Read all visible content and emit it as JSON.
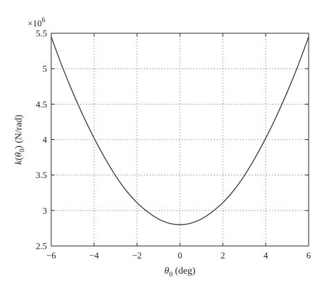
{
  "chart_data": {
    "type": "line",
    "title": "",
    "xlabel_symbol": "θ",
    "xlabel_sub": "0",
    "xlabel_rest": " (deg)",
    "ylabel_prefix": "k",
    "ylabel_paren_open": "(",
    "ylabel_symbol": "θ",
    "ylabel_sub": "0",
    "ylabel_rest": ") (N/rad)",
    "y_multiplier_base": "×10",
    "y_multiplier_exp": "6",
    "xlim": [
      -6,
      6
    ],
    "ylim": [
      2.5,
      5.5
    ],
    "x_ticks": [
      -6,
      -4,
      -2,
      0,
      2,
      4,
      6
    ],
    "x_tick_labels": [
      "−6",
      "−4",
      "−2",
      "0",
      "2",
      "4",
      "6"
    ],
    "y_ticks": [
      2.5,
      3,
      3.5,
      4,
      4.5,
      5,
      5.5
    ],
    "y_tick_labels": [
      "2.5",
      "3",
      "3.5",
      "4",
      "4.5",
      "5",
      "5.5"
    ],
    "grid": true,
    "grid_style": "dotted",
    "series": [
      {
        "color": "#333333",
        "x": [
          -6,
          -5.5,
          -5,
          -4.5,
          -4,
          -3.5,
          -3,
          -2.5,
          -2,
          -1.5,
          -1,
          -0.5,
          0,
          0.5,
          1,
          1.5,
          2,
          2.5,
          3,
          3.5,
          4,
          4.5,
          5,
          5.5,
          6
        ],
        "y": [
          5.45,
          5.04,
          4.67,
          4.33,
          4.02,
          3.74,
          3.49,
          3.28,
          3.11,
          2.98,
          2.88,
          2.82,
          2.8,
          2.82,
          2.88,
          2.98,
          3.11,
          3.28,
          3.49,
          3.74,
          4.02,
          4.33,
          4.67,
          5.04,
          5.45
        ]
      }
    ]
  }
}
